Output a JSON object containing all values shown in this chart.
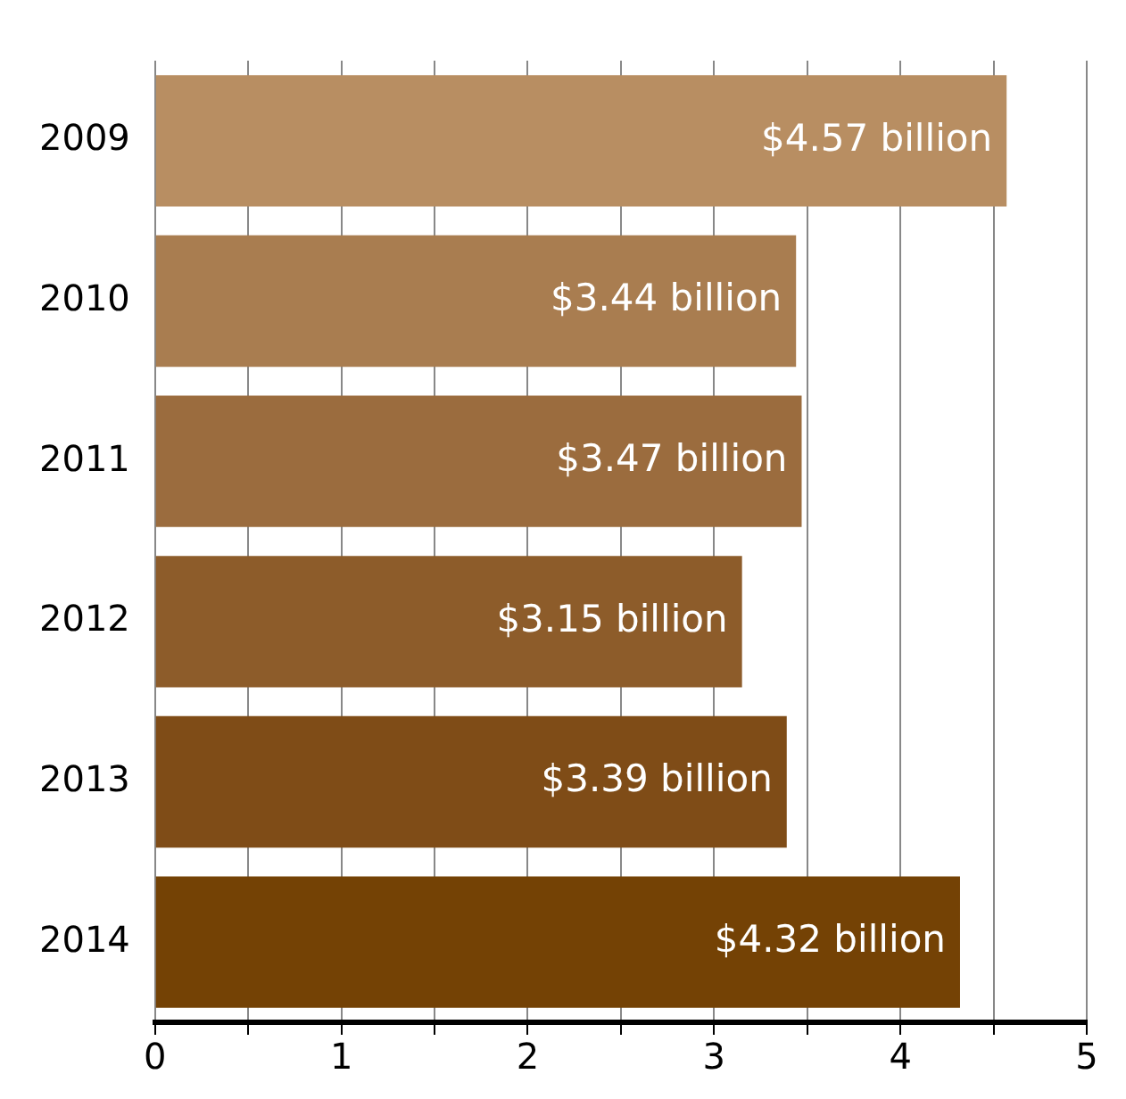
{
  "chart_data": {
    "type": "bar",
    "orientation": "horizontal",
    "categories": [
      "2009",
      "2010",
      "2011",
      "2012",
      "2013",
      "2014"
    ],
    "values": [
      4.57,
      3.44,
      3.47,
      3.15,
      3.39,
      4.32
    ],
    "colors": [
      "#b88e62",
      "#a97d50",
      "#9b6c3e",
      "#8d5c2a",
      "#7f4c17",
      "#744205"
    ],
    "value_labels": [
      "$4.57 billion",
      "$3.44 billion",
      "$3.47 billion",
      "$3.15 billion",
      "$3.39 billion",
      "$4.32 billion"
    ],
    "xlim": [
      0,
      5
    ],
    "xticks": [
      0,
      {
        "value": 0.5,
        "label": null
      },
      1,
      {
        "value": 1.5,
        "label": null
      },
      2,
      {
        "value": 2.5,
        "label": null
      },
      3,
      {
        "value": 3.5,
        "label": null
      },
      4,
      {
        "value": 4.5,
        "label": null
      },
      5
    ],
    "grid": "x",
    "legend": false
  }
}
